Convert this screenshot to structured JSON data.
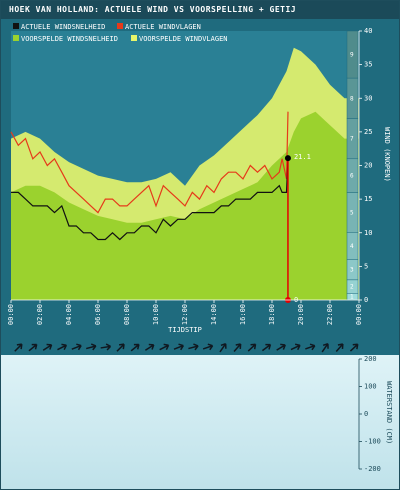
{
  "title": "HOEK VAN HOLLAND: ACTUELE WIND VS VOORSPELLING + GETIJ",
  "colors": {
    "actual_speed": "#111111",
    "actual_gust": "#e63a1a",
    "forecast_speed": "#9bd22e",
    "forecast_gust": "#e8f56a",
    "background": "#1f6b7e",
    "bottom_background": "#d6eef3",
    "marker": "#e60000"
  },
  "legend": [
    {
      "label": "ACTUELE WINDSNELHEID",
      "color": "#111111"
    },
    {
      "label": "ACTUELE WINDVLAGEN",
      "color": "#e63a1a"
    },
    {
      "label": "VOORSPELDE WINDSNELHEID",
      "color": "#9bd22e"
    },
    {
      "label": "VOORSPELDE WINDVLAGEN",
      "color": "#e8f56a"
    }
  ],
  "xlabel": "TIJDSTIP",
  "ylabel": "WIND (KNOPEN)",
  "tide_ylabel": "WATERSTAND (CM)",
  "markers": {
    "current_speed_label": "21.1",
    "zero_label": "0"
  },
  "beaufort_labels": [
    "1",
    "2",
    "3",
    "4",
    "5",
    "6",
    "7",
    "8",
    "9",
    "10",
    "11",
    "12"
  ],
  "wind_arrow_icon": "wind-direction-arrow-icon",
  "wind_arrow_count": 24,
  "chart_data": [
    {
      "type": "area",
      "title": "HOEK VAN HOLLAND: ACTUELE WIND VS VOORSPELLING + GETIJ",
      "xlabel": "TIJDSTIP",
      "ylabel": "WIND (KNOPEN)",
      "xlim": [
        0,
        24
      ],
      "ylim": [
        0,
        40
      ],
      "x_ticks": [
        "00:00",
        "02:00",
        "04:00",
        "06:00",
        "08:00",
        "10:00",
        "12:00",
        "14:00",
        "16:00",
        "18:00",
        "20:00",
        "22:00",
        "00:00"
      ],
      "y_ticks": [
        0,
        5,
        10,
        15,
        20,
        25,
        30,
        35,
        40
      ],
      "grid": false,
      "legend_position": "top-left",
      "series": [
        {
          "name": "VOORSPELDE WINDVLAGEN",
          "type": "area",
          "x": [
            0,
            1,
            2,
            3,
            4,
            5,
            6,
            7,
            8,
            9,
            10,
            11,
            12,
            13,
            14,
            15,
            16,
            17,
            18,
            19,
            19.5,
            20,
            21,
            22,
            23,
            24
          ],
          "values": [
            24,
            25,
            24,
            22,
            20.5,
            19.5,
            18.5,
            18,
            17.5,
            17.5,
            18,
            19,
            17,
            20,
            21.5,
            23.5,
            25.5,
            27.5,
            30,
            34,
            37.5,
            37,
            35,
            32,
            30,
            30
          ]
        },
        {
          "name": "VOORSPELDE WINDSNELHEID",
          "type": "area",
          "x": [
            0,
            1,
            2,
            3,
            4,
            5,
            6,
            7,
            8,
            9,
            10,
            11,
            12,
            13,
            14,
            15,
            16,
            17,
            18,
            19,
            19.5,
            20,
            21,
            22,
            23,
            24
          ],
          "values": [
            16,
            17,
            17,
            16,
            14.5,
            13.5,
            12.5,
            12,
            11.5,
            11.5,
            12,
            12.5,
            12,
            13.5,
            14.5,
            15.5,
            16.5,
            17.5,
            20,
            22,
            25,
            27,
            28,
            26,
            24,
            24
          ]
        },
        {
          "name": "ACTUELE WINDVLAGEN",
          "type": "line",
          "x": [
            0,
            0.5,
            1,
            1.5,
            2,
            2.5,
            3,
            3.5,
            4,
            4.5,
            5,
            5.5,
            6,
            6.5,
            7,
            7.5,
            8,
            8.5,
            9,
            9.5,
            10,
            10.5,
            11,
            11.5,
            12,
            12.5,
            13,
            13.5,
            14,
            14.5,
            15,
            15.5,
            16,
            16.5,
            17,
            17.5,
            18,
            18.5,
            18.7,
            19.0,
            19.1
          ],
          "values": [
            25,
            23,
            24,
            21,
            22,
            20,
            21,
            19,
            17,
            16,
            15,
            14,
            13,
            15,
            15,
            14,
            14,
            15,
            16,
            17,
            14,
            17,
            16,
            15,
            14,
            16,
            15,
            17,
            16,
            18,
            19,
            19,
            18,
            20,
            19,
            20,
            18,
            19,
            21,
            18,
            28
          ]
        },
        {
          "name": "ACTUELE WINDSNELHEID",
          "type": "line",
          "x": [
            0,
            0.5,
            1,
            1.5,
            2,
            2.5,
            3,
            3.5,
            4,
            4.5,
            5,
            5.5,
            6,
            6.5,
            7,
            7.5,
            8,
            8.5,
            9,
            9.5,
            10,
            10.5,
            11,
            11.5,
            12,
            12.5,
            13,
            13.5,
            14,
            14.5,
            15,
            15.5,
            16,
            16.5,
            17,
            17.5,
            18,
            18.5,
            18.7,
            19.0,
            19.1
          ],
          "values": [
            16,
            16,
            15,
            14,
            14,
            14,
            13,
            14,
            11,
            11,
            10,
            10,
            9,
            9,
            10,
            9,
            10,
            10,
            11,
            11,
            10,
            12,
            11,
            12,
            12,
            13,
            13,
            13,
            13,
            14,
            14,
            15,
            15,
            15,
            16,
            16,
            16,
            17,
            16,
            16,
            21.1
          ]
        }
      ]
    },
    {
      "type": "line",
      "ylabel": "WATERSTAND (CM)",
      "ylim": [
        -200,
        200
      ],
      "y_ticks": [
        200,
        100,
        0,
        -100,
        -200
      ],
      "series": []
    }
  ]
}
